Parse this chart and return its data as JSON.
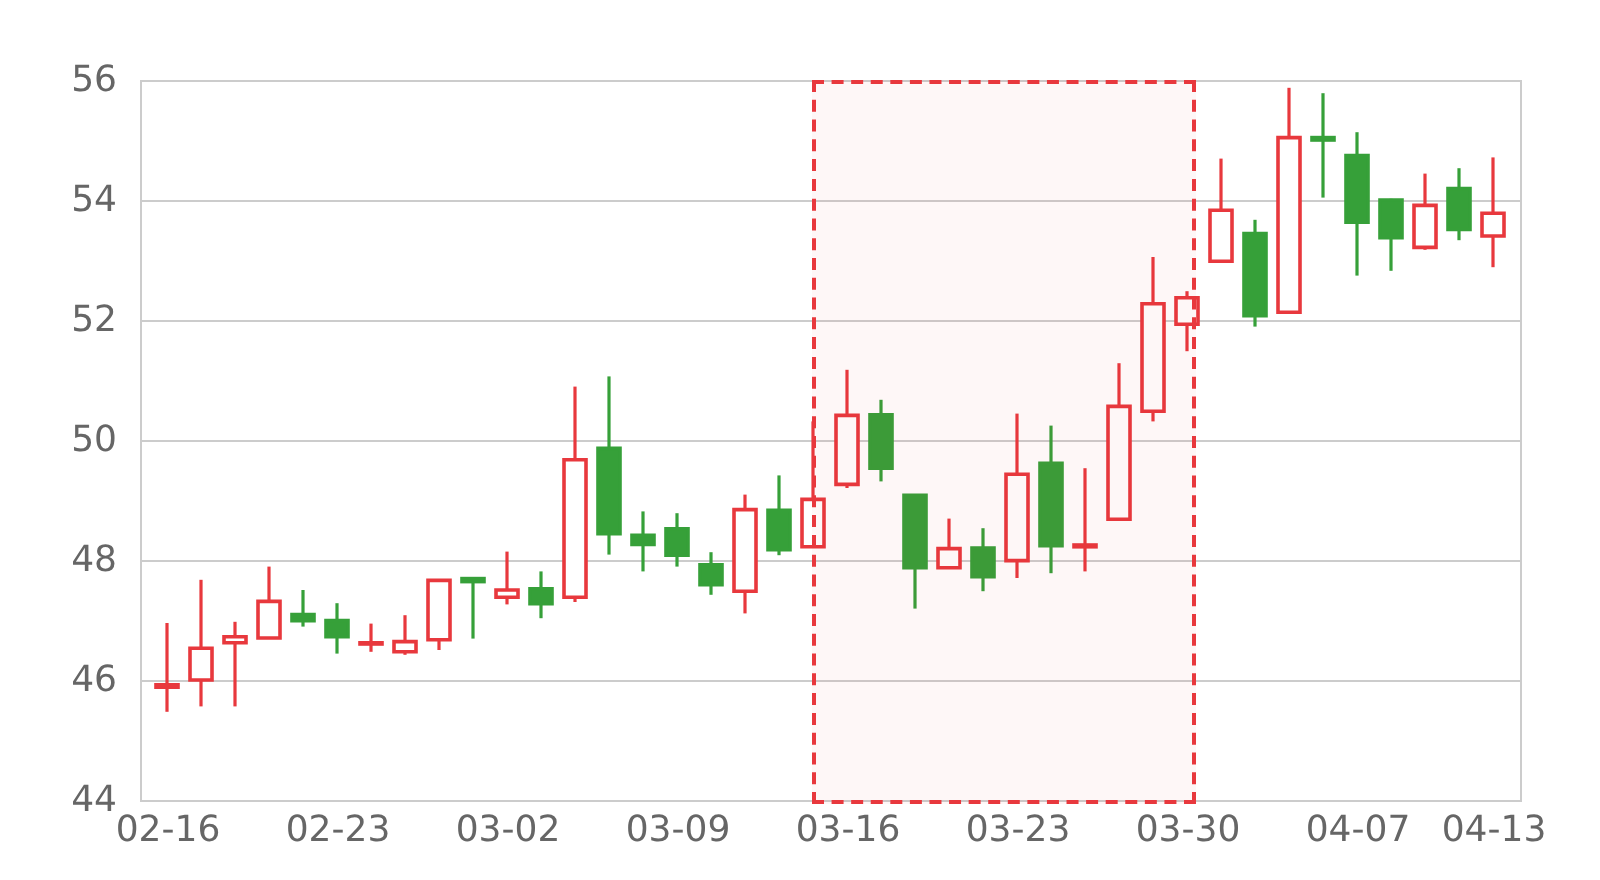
{
  "chart_data": {
    "type": "candlestick",
    "categories": [
      "02-16",
      null,
      null,
      null,
      null,
      "02-23",
      null,
      null,
      null,
      null,
      "03-02",
      null,
      null,
      null,
      null,
      "03-09",
      null,
      null,
      null,
      null,
      "03-16",
      null,
      null,
      null,
      null,
      "03-23",
      null,
      null,
      null,
      null,
      "03-30",
      null,
      null,
      null,
      null,
      "04-07",
      null,
      null,
      null,
      "04-13"
    ],
    "ohlc": [
      [
        45.88,
        46.95,
        45.47,
        45.92
      ],
      [
        46.0,
        47.67,
        45.56,
        46.53
      ],
      [
        46.62,
        46.97,
        45.56,
        46.72
      ],
      [
        46.7,
        47.89,
        46.7,
        47.31
      ],
      [
        47.09,
        47.5,
        46.89,
        46.99
      ],
      [
        46.99,
        47.28,
        46.44,
        46.72
      ],
      [
        46.6,
        46.94,
        46.47,
        46.62
      ],
      [
        46.47,
        47.08,
        46.42,
        46.64
      ],
      [
        46.67,
        47.66,
        46.5,
        47.66
      ],
      [
        47.69,
        47.69,
        46.69,
        47.64
      ],
      [
        47.38,
        48.14,
        47.26,
        47.5
      ],
      [
        47.52,
        47.81,
        47.03,
        47.27
      ],
      [
        47.38,
        50.89,
        47.3,
        49.67
      ],
      [
        49.86,
        51.06,
        48.09,
        48.44
      ],
      [
        48.41,
        48.81,
        47.81,
        48.26
      ],
      [
        48.52,
        48.78,
        47.89,
        48.08
      ],
      [
        47.92,
        48.13,
        47.42,
        47.59
      ],
      [
        47.48,
        49.09,
        47.11,
        48.84
      ],
      [
        48.83,
        49.41,
        48.08,
        48.17
      ],
      [
        48.22,
        50.31,
        48.2,
        49.01
      ],
      [
        49.26,
        51.17,
        49.2,
        50.41
      ],
      [
        50.42,
        50.67,
        49.31,
        49.53
      ],
      [
        49.08,
        49.08,
        47.19,
        47.87
      ],
      [
        47.87,
        48.69,
        47.87,
        48.19
      ],
      [
        48.2,
        48.53,
        47.48,
        47.72
      ],
      [
        47.99,
        50.44,
        47.7,
        49.43
      ],
      [
        49.61,
        50.24,
        47.78,
        48.24
      ],
      [
        48.22,
        49.53,
        47.81,
        48.25
      ],
      [
        48.68,
        51.28,
        48.68,
        50.56
      ],
      [
        50.48,
        53.05,
        50.31,
        52.27
      ],
      [
        51.93,
        52.48,
        51.48,
        52.37
      ],
      [
        52.98,
        54.69,
        52.98,
        53.83
      ],
      [
        53.44,
        53.67,
        51.89,
        52.07
      ],
      [
        52.13,
        55.87,
        52.13,
        55.04
      ],
      [
        55.04,
        55.78,
        54.04,
        55.0
      ],
      [
        54.74,
        55.13,
        52.74,
        53.63
      ],
      [
        54.0,
        54.02,
        52.82,
        53.37
      ],
      [
        53.21,
        54.44,
        53.17,
        53.91
      ],
      [
        54.19,
        54.53,
        53.33,
        53.51
      ],
      [
        53.4,
        54.71,
        52.88,
        53.78
      ]
    ],
    "colors": [
      "#e8383d",
      "#e8383d",
      "#e8383d",
      "#e8383d",
      "#36a039",
      "#36a039",
      "#e8383d",
      "#e8383d",
      "#e8383d",
      "#36a039",
      "#e8383d",
      "#36a039",
      "#e8383d",
      "#36a039",
      "#36a039",
      "#36a039",
      "#36a039",
      "#e8383d",
      "#36a039",
      "#e8383d",
      "#e8383d",
      "#36a039",
      "#36a039",
      "#e8383d",
      "#36a039",
      "#e8383d",
      "#36a039",
      "#e8383d",
      "#e8383d",
      "#e8383d",
      "#e8383d",
      "#e8383d",
      "#36a039",
      "#e8383d",
      "#36a039",
      "#36a039",
      "#36a039",
      "#e8383d",
      "#36a039",
      "#e8383d"
    ],
    "ylim": [
      44,
      56
    ],
    "yticks": [
      44,
      46,
      48,
      50,
      52,
      54,
      56
    ],
    "grid": "y"
  }
}
